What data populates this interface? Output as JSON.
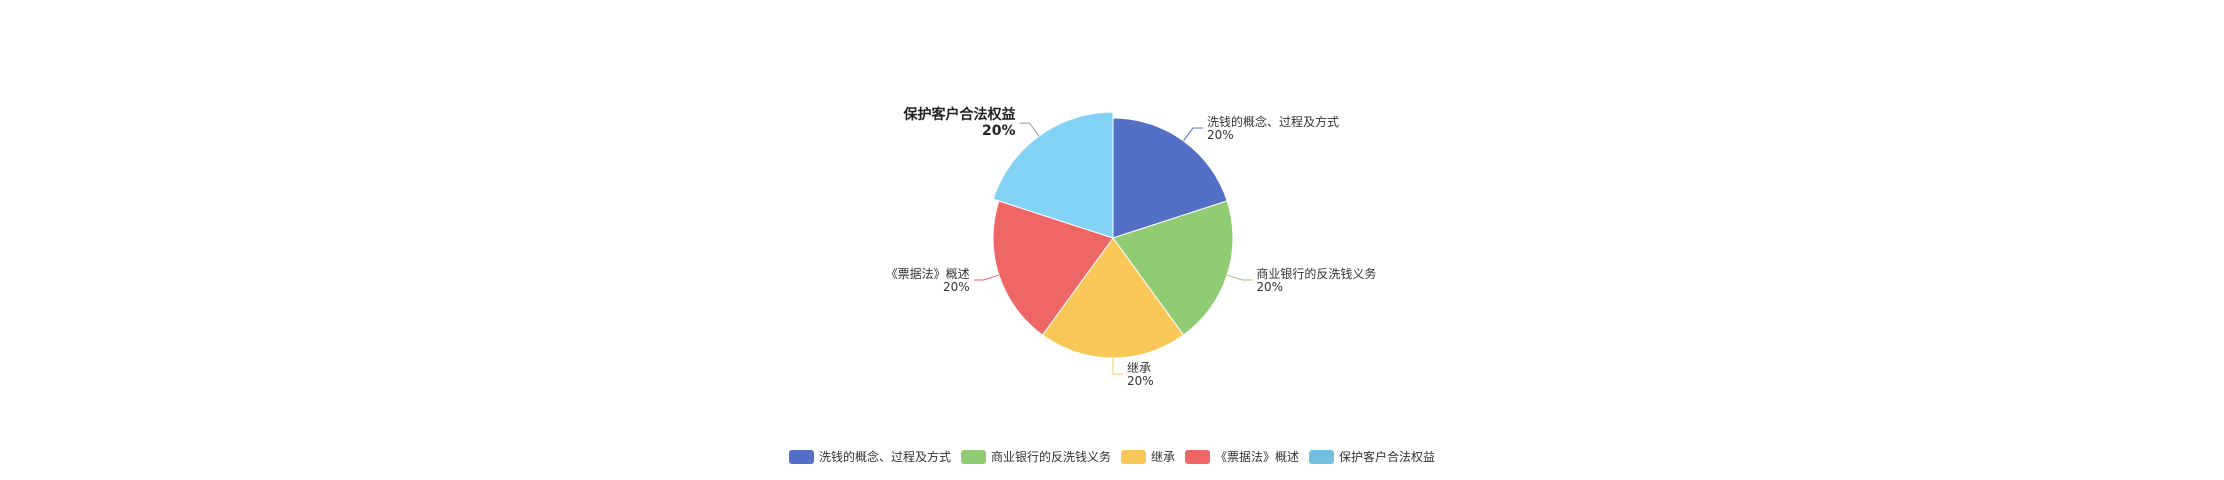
{
  "chart_data": {
    "type": "pie",
    "title": "",
    "categories": [
      "洗钱的概念、过程及方式",
      "商业银行的反洗钱义务",
      "继承",
      "《票据法》概述",
      "保护客户合法权益"
    ],
    "values": [
      20,
      20,
      20,
      20,
      20
    ],
    "labels": [
      {
        "name": "洗钱的概念、过程及方式",
        "percent": "20%"
      },
      {
        "name": "商业银行的反洗钱义务",
        "percent": "20%"
      },
      {
        "name": "继承",
        "percent": "20%"
      },
      {
        "name": "《票据法》概述",
        "percent": "20%"
      },
      {
        "name": "保护客户合法权益",
        "percent": "20%"
      }
    ],
    "colors": [
      "#5470c6",
      "#91cc75",
      "#fac858",
      "#ee6666",
      "#73c0de"
    ],
    "highlighted_index": 4,
    "highlight_color": "#82d2f5",
    "legend_position": "bottom-center"
  },
  "legend": {
    "items": [
      {
        "label": "洗钱的概念、过程及方式",
        "color": "#5470c6"
      },
      {
        "label": "商业银行的反洗钱义务",
        "color": "#91cc75"
      },
      {
        "label": "继承",
        "color": "#fac858"
      },
      {
        "label": "《票据法》概述",
        "color": "#ee6666"
      },
      {
        "label": "保护客户合法权益",
        "color": "#73c0de"
      }
    ]
  }
}
